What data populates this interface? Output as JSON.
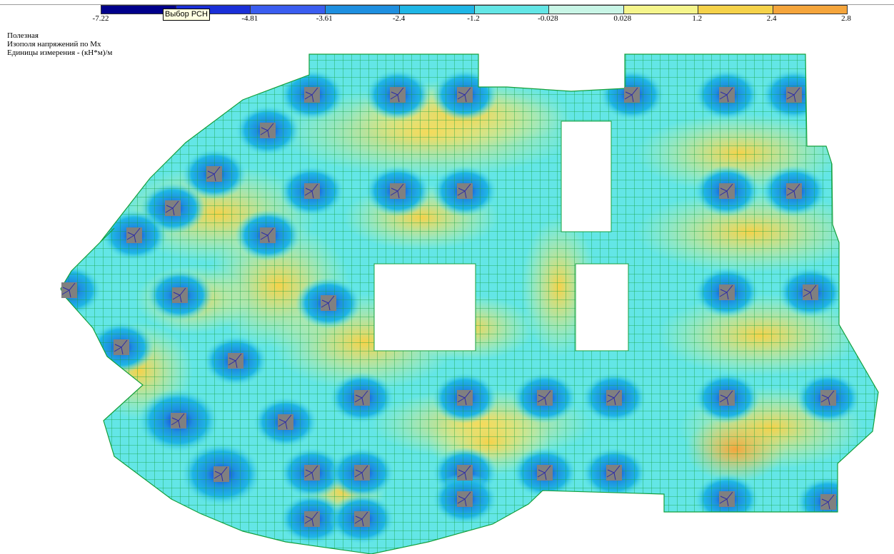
{
  "tooltip": "Выбор РСН",
  "info": {
    "loadcase": "Полезная",
    "mode": "Изополя напряжений по Mx",
    "units": "Единицы измерения - (кН*м)/м"
  },
  "scale": {
    "ticks": [
      "-7.22",
      "-6.01",
      "-4.81",
      "-3.61",
      "-2.4",
      "-1.2",
      "-0.028",
      "0.028",
      "1.2",
      "2.4",
      "2.8"
    ],
    "colors": [
      "#00008b",
      "#1a2fd8",
      "#3a5df0",
      "#1e8fe0",
      "#1fb6e6",
      "#63e6e6",
      "#c8f5e6",
      "#f5f58c",
      "#f5d24a",
      "#f5a53c"
    ]
  },
  "plot": {
    "mesh_color": "#14a03c",
    "column_color": "#808080"
  }
}
